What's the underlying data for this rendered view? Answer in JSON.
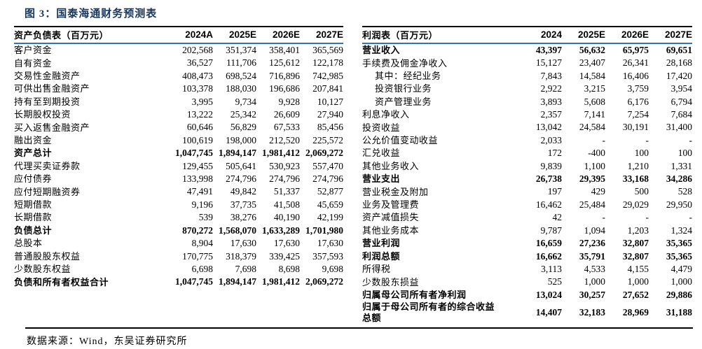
{
  "title": "图 3：国泰海通财务预测表",
  "colors": {
    "title_navy": "#17375e",
    "header_underline_blue": "#2e75b6",
    "rule_black": "#000000"
  },
  "tables": [
    {
      "id": "balance-sheet",
      "header": [
        "资产负债表（百万元）",
        "2024A",
        "2025E",
        "2026E",
        "2027E"
      ],
      "rows": [
        {
          "label": "客户资金",
          "values": [
            "202,568",
            "351,374",
            "358,401",
            "365,569"
          ],
          "bold": false,
          "indent": 0
        },
        {
          "label": "自有资金",
          "values": [
            "36,527",
            "111,706",
            "125,612",
            "122,178"
          ],
          "bold": false,
          "indent": 0
        },
        {
          "label": "交易性金融资产",
          "values": [
            "408,473",
            "698,524",
            "716,896",
            "742,985"
          ],
          "bold": false,
          "indent": 0
        },
        {
          "label": "可供出售金融资产",
          "values": [
            "103,378",
            "188,030",
            "196,686",
            "207,841"
          ],
          "bold": false,
          "indent": 0
        },
        {
          "label": "持有至到期投资",
          "values": [
            "3,995",
            "9,734",
            "9,928",
            "10,127"
          ],
          "bold": false,
          "indent": 0
        },
        {
          "label": "长期股权投资",
          "values": [
            "13,222",
            "25,342",
            "26,609",
            "27,940"
          ],
          "bold": false,
          "indent": 0
        },
        {
          "label": "买入返售金融资产",
          "values": [
            "60,646",
            "56,829",
            "67,533",
            "85,456"
          ],
          "bold": false,
          "indent": 0
        },
        {
          "label": "融出资金",
          "values": [
            "100,619",
            "198,000",
            "212,520",
            "225,572"
          ],
          "bold": false,
          "indent": 0
        },
        {
          "label": "资产总计",
          "values": [
            "1,047,745",
            "1,894,147",
            "1,981,412",
            "2,069,272"
          ],
          "bold": true,
          "indent": 0
        },
        {
          "label": "代理买卖证券款",
          "values": [
            "129,455",
            "505,641",
            "530,923",
            "557,470"
          ],
          "bold": false,
          "indent": 0
        },
        {
          "label": "应付债券",
          "values": [
            "133,998",
            "274,796",
            "274,796",
            "274,796"
          ],
          "bold": false,
          "indent": 0
        },
        {
          "label": "应付短期融资券",
          "values": [
            "47,491",
            "49,842",
            "51,337",
            "52,877"
          ],
          "bold": false,
          "indent": 0
        },
        {
          "label": "短期借款",
          "values": [
            "9,196",
            "37,735",
            "41,508",
            "45,659"
          ],
          "bold": false,
          "indent": 0
        },
        {
          "label": "长期借款",
          "values": [
            "539",
            "38,276",
            "40,190",
            "42,199"
          ],
          "bold": false,
          "indent": 0
        },
        {
          "label": "负债总计",
          "values": [
            "870,272",
            "1,568,070",
            "1,633,289",
            "1,701,980"
          ],
          "bold": true,
          "indent": 0
        },
        {
          "label": "总股本",
          "values": [
            "8,904",
            "17,630",
            "17,630",
            "17,630"
          ],
          "bold": false,
          "indent": 0
        },
        {
          "label": "普通股股东权益",
          "values": [
            "170,775",
            "318,379",
            "339,425",
            "357,593"
          ],
          "bold": false,
          "indent": 0
        },
        {
          "label": "少数股东权益",
          "values": [
            "6,698",
            "7,698",
            "8,698",
            "9,698"
          ],
          "bold": false,
          "indent": 0
        },
        {
          "label": "负债和所有者权益合计",
          "values": [
            "1,047,745",
            "1,894,147",
            "1,981,412",
            "2,069,272"
          ],
          "bold": true,
          "indent": 0
        }
      ]
    },
    {
      "id": "income-statement",
      "header": [
        "利润表（百万元）",
        "2024",
        "2025E",
        "2026E",
        "2027E"
      ],
      "rows": [
        {
          "label": "营业收入",
          "values": [
            "43,397",
            "56,632",
            "65,975",
            "69,651"
          ],
          "bold": true,
          "indent": 0
        },
        {
          "label": "手续费及佣金净收入",
          "values": [
            "15,127",
            "23,407",
            "26,341",
            "28,168"
          ],
          "bold": false,
          "indent": 0
        },
        {
          "label": "其中：经纪业务",
          "values": [
            "7,843",
            "14,584",
            "16,406",
            "17,420"
          ],
          "bold": false,
          "indent": 1
        },
        {
          "label": "投资银行业务",
          "values": [
            "2,922",
            "3,215",
            "3,759",
            "3,954"
          ],
          "bold": false,
          "indent": 1
        },
        {
          "label": "资产管理业务",
          "values": [
            "3,893",
            "5,608",
            "6,176",
            "6,794"
          ],
          "bold": false,
          "indent": 1
        },
        {
          "label": "利息净收入",
          "values": [
            "2,357",
            "7,141",
            "7,254",
            "7,684"
          ],
          "bold": false,
          "indent": 0
        },
        {
          "label": "投资收益",
          "values": [
            "13,042",
            "24,584",
            "30,191",
            "31,400"
          ],
          "bold": false,
          "indent": 0
        },
        {
          "label": "公允价值变动收益",
          "values": [
            "2,033",
            "-",
            "-",
            "-"
          ],
          "bold": false,
          "indent": 0
        },
        {
          "label": "汇兑收益",
          "values": [
            "172",
            "-400",
            "100",
            "100"
          ],
          "bold": false,
          "indent": 0
        },
        {
          "label": "其他业务收入",
          "values": [
            "9,839",
            "1,100",
            "1,210",
            "1,331"
          ],
          "bold": false,
          "indent": 0
        },
        {
          "label": "营业支出",
          "values": [
            "26,738",
            "29,395",
            "33,168",
            "34,286"
          ],
          "bold": true,
          "indent": 0
        },
        {
          "label": "营业税金及附加",
          "values": [
            "197",
            "429",
            "500",
            "528"
          ],
          "bold": false,
          "indent": 0
        },
        {
          "label": "业务及管理费",
          "values": [
            "16,462",
            "25,484",
            "29,029",
            "29,950"
          ],
          "bold": false,
          "indent": 0
        },
        {
          "label": "资产减值损失",
          "values": [
            "42",
            "-",
            "-",
            "-"
          ],
          "bold": false,
          "indent": 0
        },
        {
          "label": "其他业务成本",
          "values": [
            "9,787",
            "1,094",
            "1,203",
            "1,324"
          ],
          "bold": false,
          "indent": 0
        },
        {
          "label": "营业利润",
          "values": [
            "16,659",
            "27,236",
            "32,807",
            "35,365"
          ],
          "bold": true,
          "indent": 0
        },
        {
          "label": "利润总额",
          "values": [
            "16,662",
            "35,791",
            "32,807",
            "35,365"
          ],
          "bold": true,
          "indent": 0
        },
        {
          "label": "所得税",
          "values": [
            "3,113",
            "4,533",
            "4,155",
            "4,479"
          ],
          "bold": false,
          "indent": 0
        },
        {
          "label": "少数股东损益",
          "values": [
            "525",
            "1,000",
            "1,000",
            "1,000"
          ],
          "bold": false,
          "indent": 0
        },
        {
          "label": "归属母公司所有者净利润",
          "values": [
            "13,024",
            "30,257",
            "27,652",
            "29,886"
          ],
          "bold": true,
          "indent": 0
        },
        {
          "label": "归属于母公司所有者的综合收益\n总额",
          "values": [
            "14,407",
            "32,183",
            "28,969",
            "31,188"
          ],
          "bold": true,
          "indent": 0
        }
      ]
    }
  ],
  "footer": {
    "source_note": "数据来源：Wind，东吴证券研究所"
  }
}
